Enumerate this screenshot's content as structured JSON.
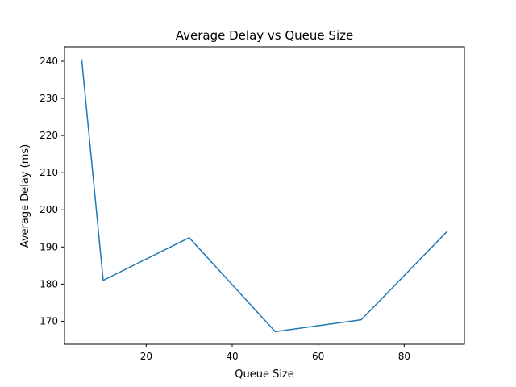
{
  "chart_data": {
    "type": "line",
    "title": "Average Delay vs Queue Size",
    "xlabel": "Queue Size",
    "ylabel": "Average Delay (ms)",
    "xlim": [
      1,
      94
    ],
    "ylim": [
      163.8,
      243.9
    ],
    "xticks": [
      20,
      40,
      60,
      80
    ],
    "yticks": [
      170,
      180,
      190,
      200,
      210,
      220,
      230,
      240
    ],
    "grid": false,
    "series": [
      {
        "color": "#1f77b4",
        "x": [
          5,
          10,
          30,
          50,
          70,
          90
        ],
        "y": [
          240.5,
          181.0,
          192.5,
          167.2,
          170.4,
          194.2
        ]
      }
    ]
  }
}
